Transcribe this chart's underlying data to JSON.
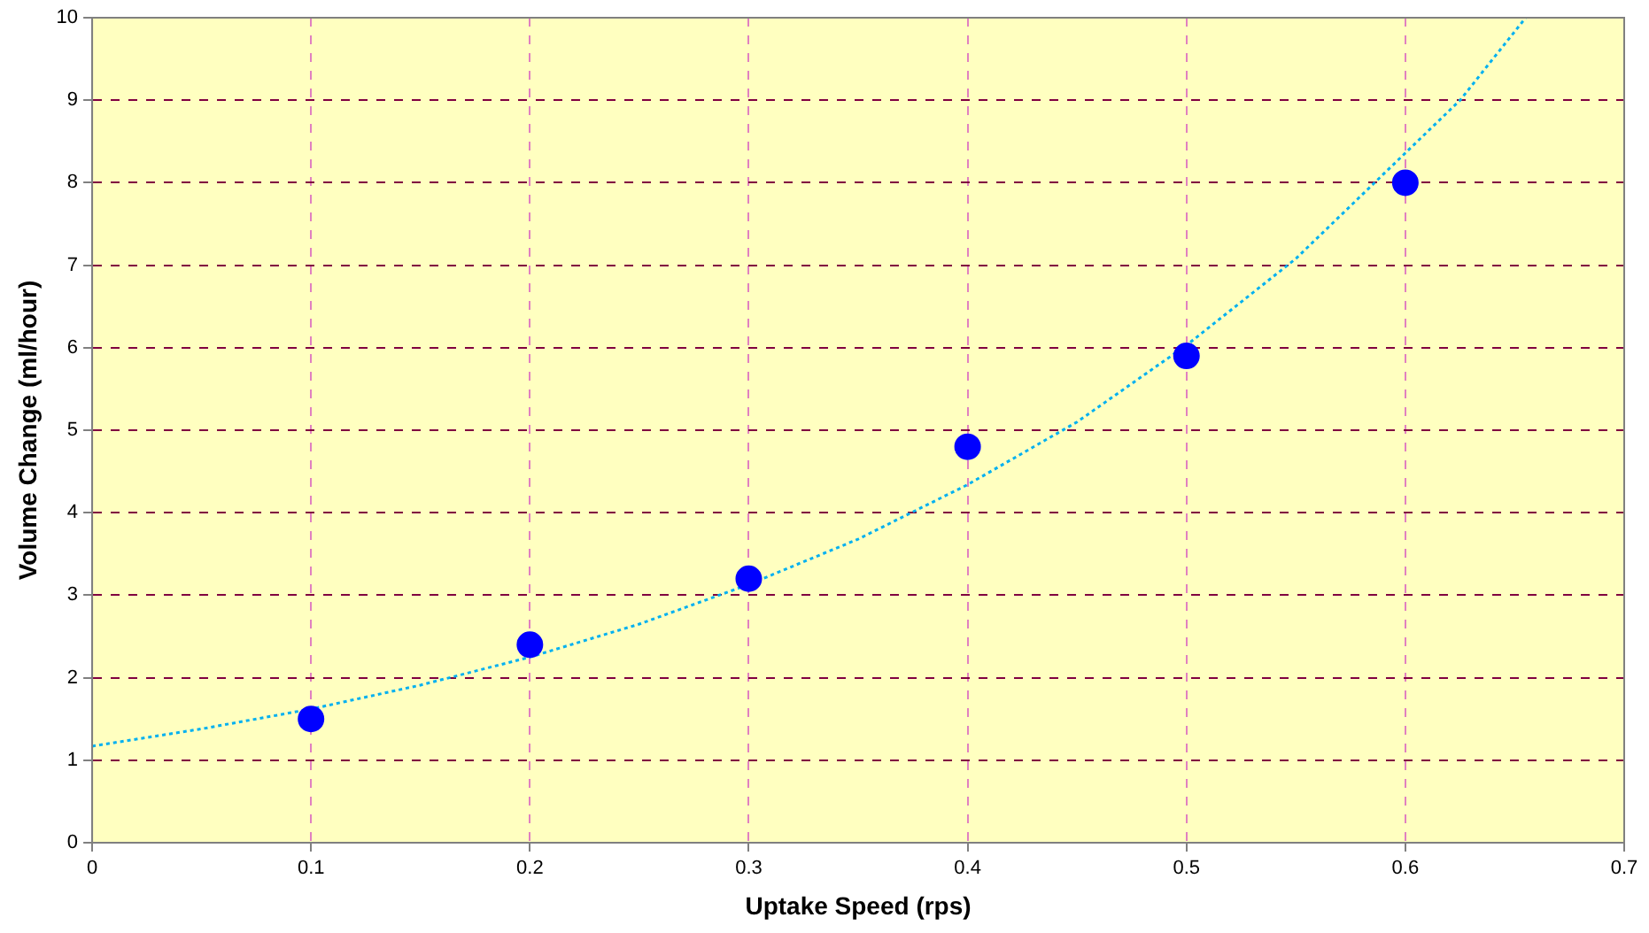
{
  "chart_data": {
    "type": "scatter",
    "xlabel": "Uptake Speed (rps)",
    "ylabel": "Volume Change (ml/hour)",
    "xlim": [
      0,
      0.7
    ],
    "xticks": [
      0,
      0.1,
      0.2,
      0.3,
      0.4,
      0.5,
      0.6,
      0.7
    ],
    "ylim": [
      0,
      10
    ],
    "yticks": [
      0,
      1,
      2,
      3,
      4,
      5,
      6,
      7,
      8,
      9,
      10
    ],
    "grid": true,
    "legend": false,
    "series": [
      {
        "color": "#0000ff",
        "marker": "circle",
        "x": [
          0.1,
          0.2,
          0.3,
          0.4,
          0.5,
          0.6
        ],
        "values": [
          1.5,
          2.4,
          3.2,
          4.8,
          5.9,
          8.0
        ]
      },
      {
        "type": "line",
        "color": "#00b0f0",
        "marker": "none",
        "line_style": "dotted",
        "x": [
          0,
          0.05,
          0.1,
          0.15,
          0.2,
          0.25,
          0.3,
          0.35,
          0.4,
          0.45,
          0.5,
          0.55,
          0.6,
          0.625,
          0.655
        ],
        "values": [
          1.17,
          1.38,
          1.62,
          1.91,
          2.25,
          2.65,
          3.13,
          3.68,
          4.34,
          5.1,
          6.03,
          7.08,
          8.36,
          9.0,
          10
        ]
      }
    ]
  }
}
